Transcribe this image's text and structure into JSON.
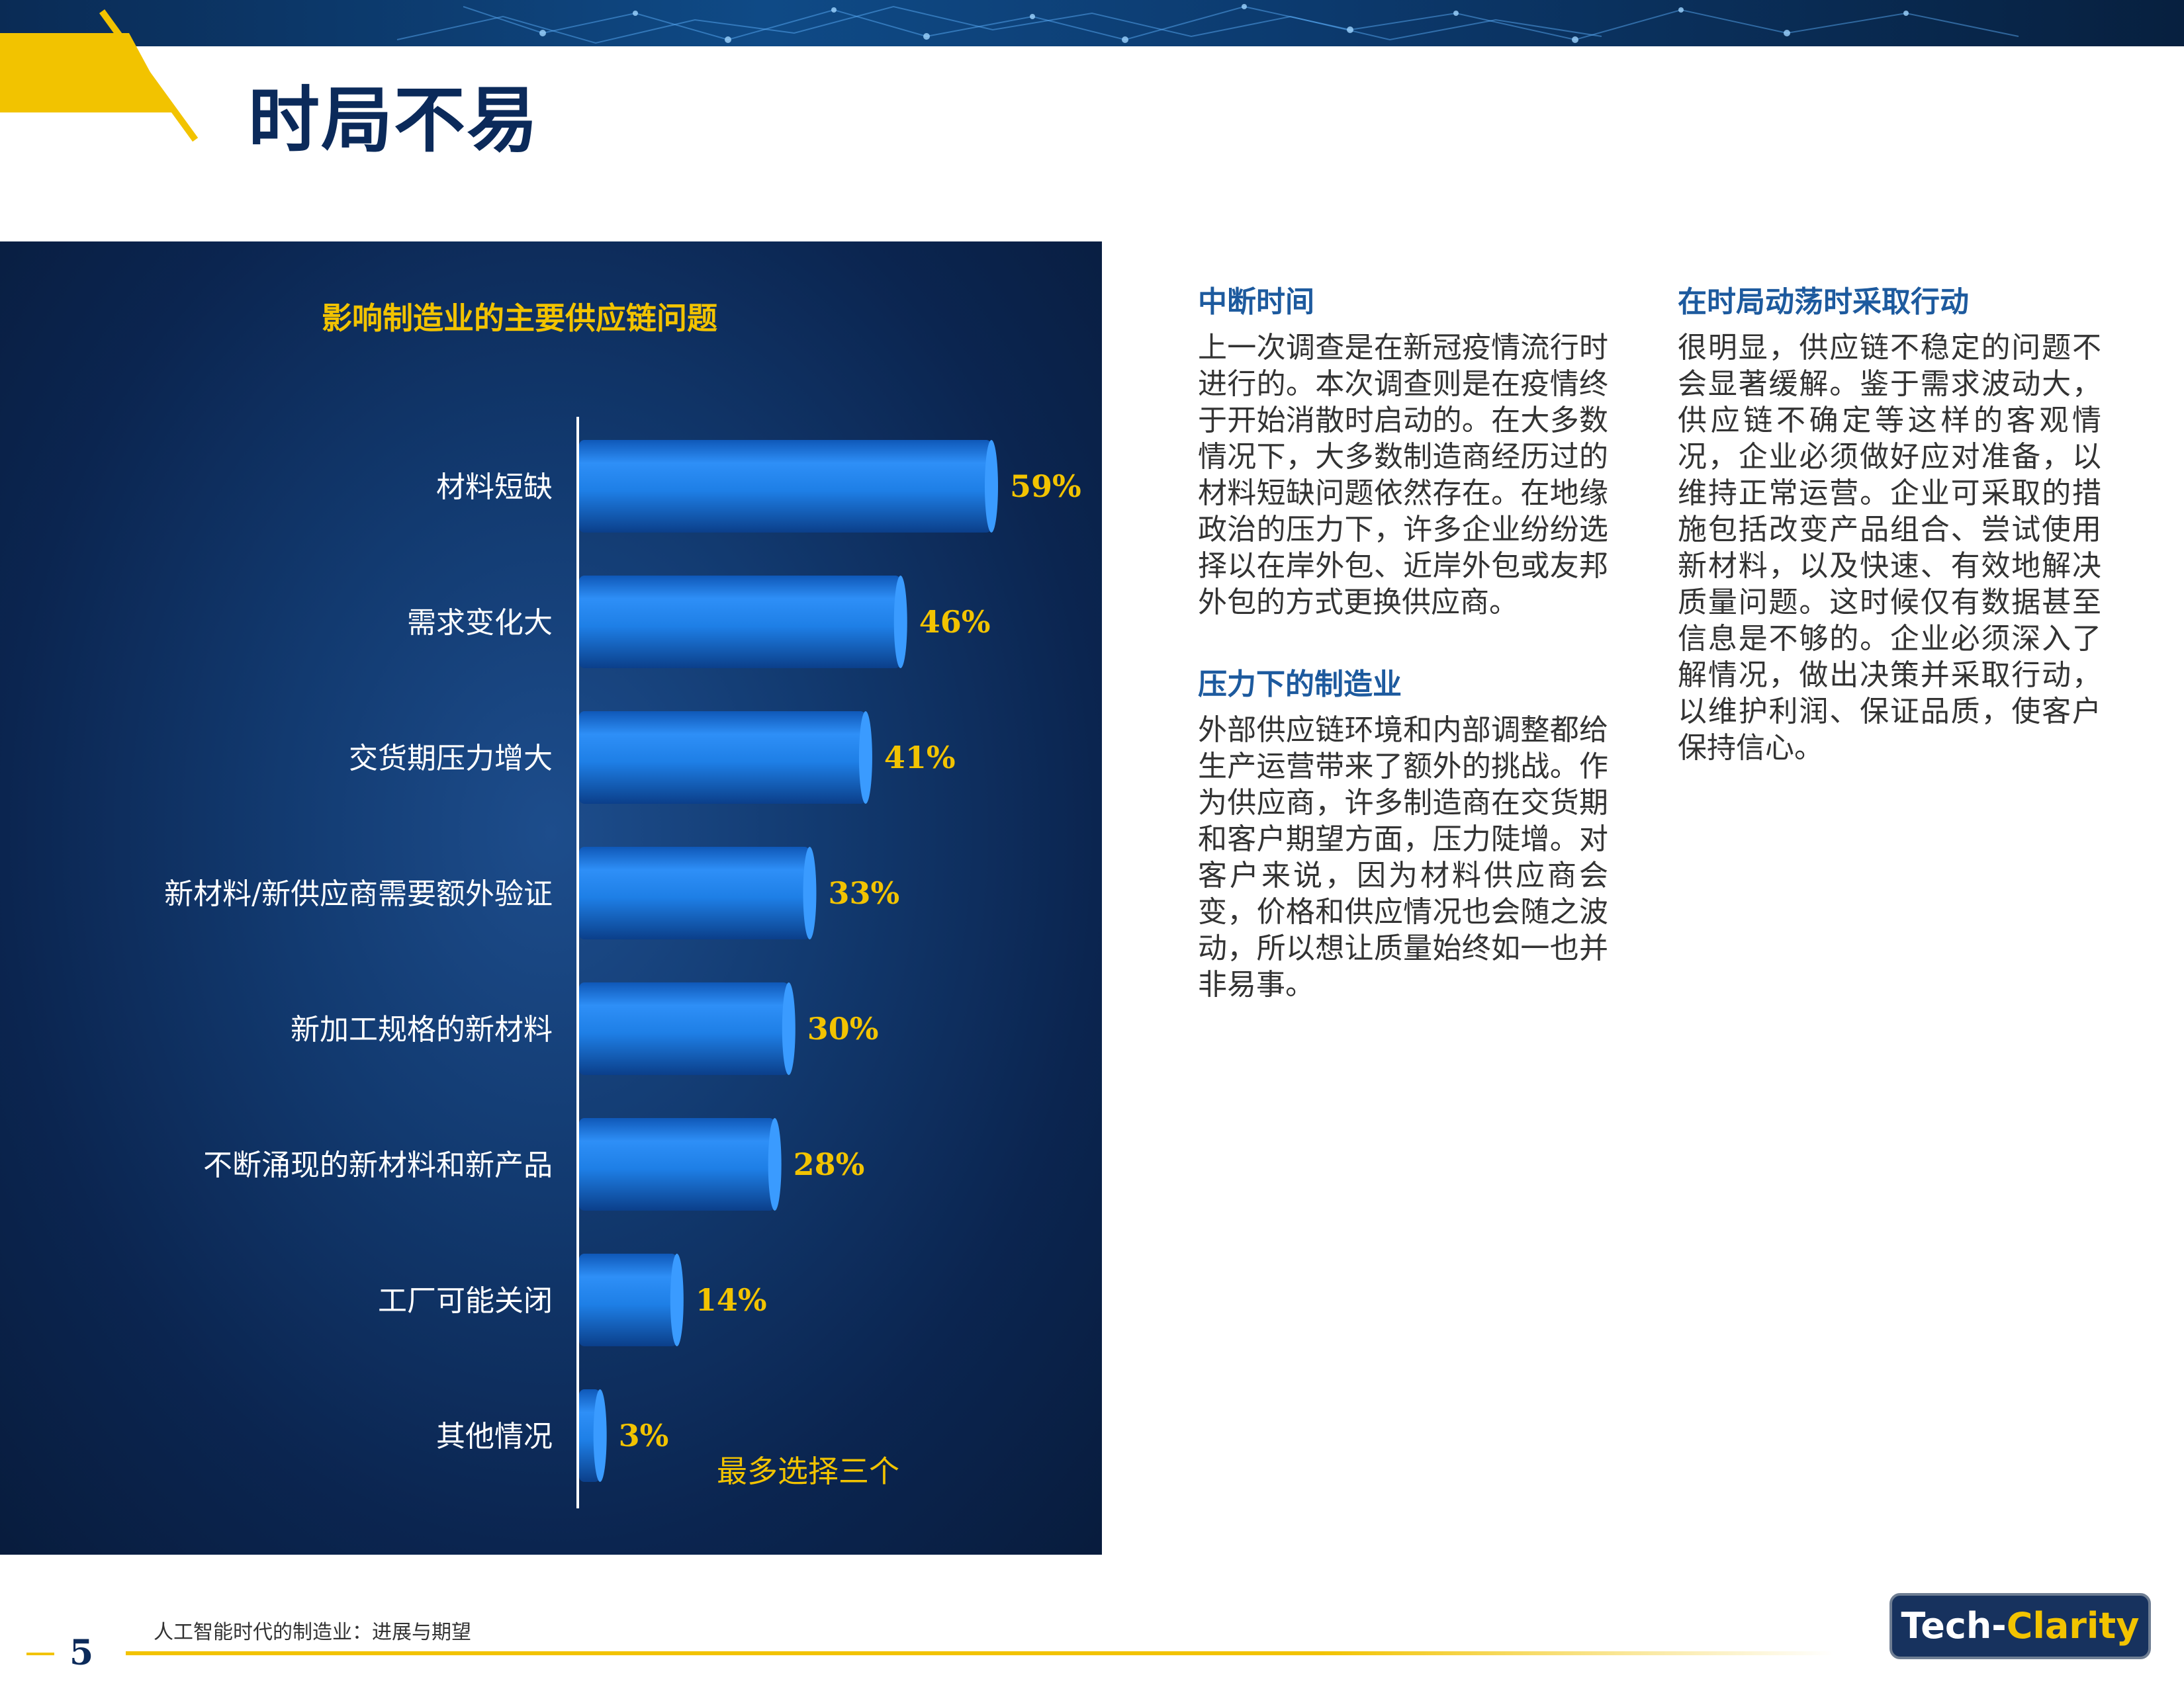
{
  "page": {
    "title": "时局不易",
    "page_number": "5",
    "footer_title": "人工智能时代的制造业：进展与期望"
  },
  "logo": {
    "part1": "Tech-",
    "part2": "Clarity"
  },
  "chart": {
    "title": "影响制造业的主要供应链问题",
    "note": "最多选择三个"
  },
  "chart_data": {
    "type": "bar",
    "orientation": "horizontal",
    "title": "影响制造业的主要供应链问题",
    "categories": [
      "材料短缺",
      "需求变化大",
      "交货期压力增大",
      "新材料/新供应商需要额外验证",
      "新加工规格的新材料",
      "不断涌现的新材料和新产品",
      "工厂可能关闭",
      "其他情况"
    ],
    "values": [
      59,
      46,
      41,
      33,
      30,
      28,
      14,
      3
    ],
    "value_labels": [
      "59%",
      "46%",
      "41%",
      "33%",
      "30%",
      "28%",
      "14%",
      "3%"
    ],
    "unit": "%",
    "xlim": [
      0,
      80
    ],
    "annotation": "最多选择三个",
    "grid": false,
    "colors": {
      "bar": "#1e7fe6",
      "label": "#f2c300",
      "category": "#ffffff"
    }
  },
  "sections": {
    "s1": {
      "heading": "中断时间",
      "body": "上一次调查是在新冠疫情流行时进行的。本次调查则是在疫情终于开始消散时启动的。在大多数情况下，大多数制造商经历过的材料短缺问题依然存在。在地缘政治的压力下，许多企业纷纷选择以在岸外包、近岸外包或友邦外包的方式更换供应商。"
    },
    "s2": {
      "heading": "压力下的制造业",
      "body": "外部供应链环境和内部调整都给生产运营带来了额外的挑战。作为供应商，许多制造商在交货期和客户期望方面，压力陡增。对客户来说，因为材料供应商会变，价格和供应情况也会随之波动，所以想让质量始终如一也并非易事。"
    },
    "s3": {
      "heading": "在时局动荡时采取行动",
      "body": "很明显，供应链不稳定的问题不会显著缓解。鉴于需求波动大，供应链不确定等这样的客观情况，企业必须做好应对准备，以维持正常运营。企业可采取的措施包括改变产品组合、尝试使用新材料，以及快速、有效地解决质量问题。这时候仅有数据甚至信息是不够的。企业必须深入了解情况，做出决策并采取行动，以维护利润、保证品质，使客户保持信心。"
    }
  },
  "colors": {
    "navy": "#0b2a5a",
    "gold": "#f2c300",
    "heading_blue": "#1d5a9e"
  }
}
